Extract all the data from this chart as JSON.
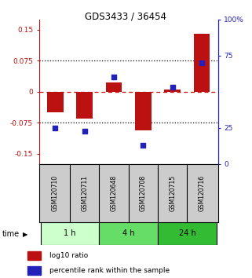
{
  "title": "GDS3433 / 36454",
  "samples": [
    "GSM120710",
    "GSM120711",
    "GSM120648",
    "GSM120708",
    "GSM120715",
    "GSM120716"
  ],
  "log10_ratio": [
    -0.05,
    -0.065,
    0.022,
    -0.093,
    0.005,
    0.14
  ],
  "percentile_rank": [
    25.0,
    23.0,
    60.0,
    13.0,
    53.0,
    70.0
  ],
  "bar_color": "#bb1111",
  "dot_color": "#2222bb",
  "left_ylim": [
    -0.175,
    0.175
  ],
  "right_ylim": [
    0,
    100
  ],
  "left_yticks": [
    -0.15,
    -0.075,
    0,
    0.075,
    0.15
  ],
  "left_yticklabels": [
    "-0.15",
    "-0.075",
    "0",
    "0.075",
    "0.15"
  ],
  "right_yticks": [
    0,
    25,
    75,
    100
  ],
  "right_yticklabels": [
    "0",
    "25",
    "75",
    "100%"
  ],
  "dotted_lines_black": [
    -0.075,
    0.075
  ],
  "zero_line_color": "#cc0000",
  "dotted_line_color": "#000000",
  "time_groups": [
    {
      "label": "1 h",
      "start": 0,
      "end": 2,
      "color": "#ccffcc"
    },
    {
      "label": "4 h",
      "start": 2,
      "end": 4,
      "color": "#66dd66"
    },
    {
      "label": "24 h",
      "start": 4,
      "end": 6,
      "color": "#33bb33"
    }
  ],
  "legend_items": [
    {
      "label": "log10 ratio",
      "color": "#bb1111"
    },
    {
      "label": "percentile rank within the sample",
      "color": "#2222bb"
    }
  ],
  "bar_width": 0.55,
  "background_color": "#ffffff"
}
